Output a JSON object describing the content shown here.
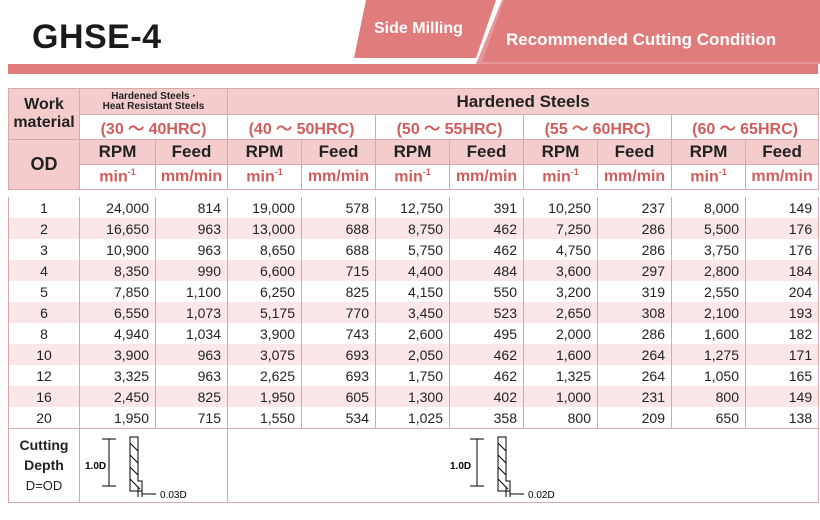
{
  "title": "GHSE-4",
  "banner": {
    "left": "Side Milling",
    "right": "Recommended Cutting Condition"
  },
  "header": {
    "work_material_1": "Work",
    "work_material_2": "material",
    "first_group_1": "Hardened Steels ·",
    "first_group_2": "Heat Resistant Steels",
    "hardened_steels": "Hardened Steels",
    "ranges": [
      "(30 ～ 40HRC)",
      "(40 ～ 50HRC)",
      "(50 ～ 55HRC)",
      "(55 ～ 60HRC)",
      "(60 ～ 65HRC)"
    ],
    "od": "OD",
    "rpm": "RPM",
    "feed": "Feed",
    "rpm_unit": "min",
    "rpm_unit_sup": "-1",
    "feed_unit": "mm/min"
  },
  "rows": [
    {
      "od": "1",
      "v": [
        "24,000",
        "814",
        "19,000",
        "578",
        "12,750",
        "391",
        "10,250",
        "237",
        "8,000",
        "149"
      ]
    },
    {
      "od": "2",
      "v": [
        "16,650",
        "963",
        "13,000",
        "688",
        "8,750",
        "462",
        "7,250",
        "286",
        "5,500",
        "176"
      ]
    },
    {
      "od": "3",
      "v": [
        "10,900",
        "963",
        "8,650",
        "688",
        "5,750",
        "462",
        "4,750",
        "286",
        "3,750",
        "176"
      ]
    },
    {
      "od": "4",
      "v": [
        "8,350",
        "990",
        "6,600",
        "715",
        "4,400",
        "484",
        "3,600",
        "297",
        "2,800",
        "184"
      ]
    },
    {
      "od": "5",
      "v": [
        "7,850",
        "1,100",
        "6,250",
        "825",
        "4,150",
        "550",
        "3,200",
        "319",
        "2,550",
        "204"
      ]
    },
    {
      "od": "6",
      "v": [
        "6,550",
        "1,073",
        "5,175",
        "770",
        "3,450",
        "523",
        "2,650",
        "308",
        "2,100",
        "193"
      ]
    },
    {
      "od": "8",
      "v": [
        "4,940",
        "1,034",
        "3,900",
        "743",
        "2,600",
        "495",
        "2,000",
        "286",
        "1,600",
        "182"
      ]
    },
    {
      "od": "10",
      "v": [
        "3,900",
        "963",
        "3,075",
        "693",
        "2,050",
        "462",
        "1,600",
        "264",
        "1,275",
        "171"
      ]
    },
    {
      "od": "12",
      "v": [
        "3,325",
        "963",
        "2,625",
        "693",
        "1,750",
        "462",
        "1,325",
        "264",
        "1,050",
        "165"
      ]
    },
    {
      "od": "16",
      "v": [
        "2,450",
        "825",
        "1,950",
        "605",
        "1,300",
        "402",
        "1,000",
        "231",
        "800",
        "149"
      ]
    },
    {
      "od": "20",
      "v": [
        "1,950",
        "715",
        "1,550",
        "534",
        "1,025",
        "358",
        "800",
        "209",
        "650",
        "138"
      ]
    }
  ],
  "cutting_depth": {
    "label_1": "Cutting",
    "label_2": "Depth",
    "label_3": "D=OD",
    "diagram_left": {
      "axial": "1.0D",
      "radial": "0.03D"
    },
    "diagram_right": {
      "axial": "1.0D",
      "radial": "0.02D"
    }
  },
  "colors": {
    "accent": "#e07c7c",
    "header_fill": "#f4cccc",
    "alt_row": "#fbe7e7",
    "range_text": "#d15c5c"
  }
}
